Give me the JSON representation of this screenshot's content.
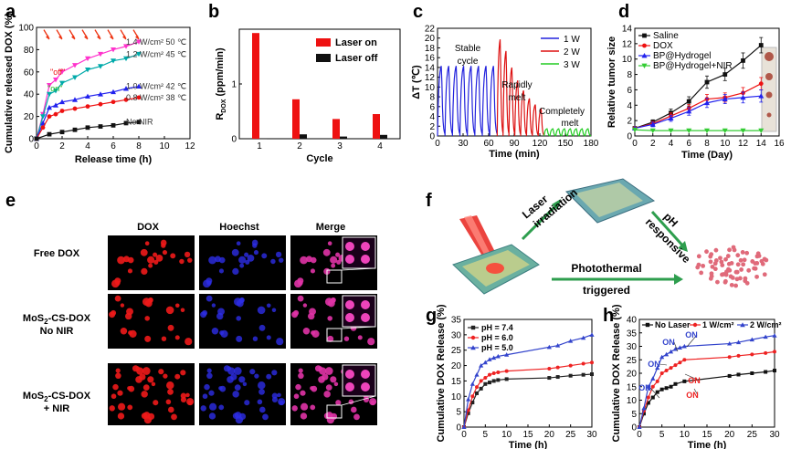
{
  "panel_labels": [
    "a",
    "b",
    "c",
    "d",
    "e",
    "f",
    "g",
    "h"
  ],
  "chart_data": [
    {
      "id": "a",
      "type": "line",
      "xlabel": "Release time (h)",
      "ylabel": "Cumulative released DOX (%)",
      "xlim": [
        0,
        12
      ],
      "ylim": [
        0,
        100
      ],
      "xticks": [
        "0",
        "2",
        "4",
        "6",
        "8",
        "10",
        "12"
      ],
      "yticks": [
        "0",
        "20",
        "40",
        "60",
        "80",
        "100"
      ],
      "on_label": "\"on\"",
      "off_label": "\"off\"",
      "series": [
        {
          "name": "1.4 W/cm² 50 ℃",
          "color": "#ff33cc",
          "marker": "triangle-down",
          "x": [
            0,
            0.5,
            1,
            1.5,
            2,
            3,
            4,
            5,
            6,
            7,
            8
          ],
          "y": [
            0,
            22,
            48,
            53,
            60,
            66,
            72,
            76,
            80,
            83,
            87
          ]
        },
        {
          "name": "1.2 W/cm² 45 ℃",
          "color": "#00aaaa",
          "marker": "triangle-down",
          "x": [
            0,
            0.5,
            1,
            1.5,
            2,
            3,
            4,
            5,
            6,
            7,
            8
          ],
          "y": [
            0,
            20,
            40,
            43,
            50,
            55,
            62,
            65,
            70,
            72,
            76
          ]
        },
        {
          "name": "1.0 W/cm² 42 ℃",
          "color": "#2222ee",
          "marker": "triangle-up",
          "x": [
            0,
            0.5,
            1,
            1.5,
            2,
            3,
            4,
            5,
            6,
            7,
            8
          ],
          "y": [
            0,
            14,
            28,
            30,
            33,
            35,
            38,
            40,
            42,
            45,
            47
          ]
        },
        {
          "name": "0.8 W/cm² 38 ℃",
          "color": "#ee1111",
          "marker": "circle",
          "x": [
            0,
            0.5,
            1,
            1.5,
            2,
            3,
            4,
            5,
            6,
            7,
            8
          ],
          "y": [
            0,
            10,
            20,
            22,
            25,
            27,
            29,
            31,
            33,
            35,
            37
          ]
        },
        {
          "name": "No NIR",
          "color": "#111111",
          "marker": "square",
          "x": [
            0,
            1,
            2,
            3,
            4,
            5,
            6,
            7,
            8
          ],
          "y": [
            0,
            4,
            6,
            8,
            10,
            11,
            12,
            14,
            15
          ]
        }
      ]
    },
    {
      "id": "b",
      "type": "bar",
      "xlabel": "Cycle",
      "ylabel": "R",
      "ylabel_sub": "DOX",
      "ylabel_unit": " (ppm/min)",
      "ylim": [
        0,
        2.0
      ],
      "yticks": [
        "0",
        "1"
      ],
      "categories": [
        "1",
        "2",
        "3",
        "4"
      ],
      "series": [
        {
          "name": "Laser on",
          "color": "#ee1111",
          "values": [
            1.93,
            0.72,
            0.36,
            0.45
          ]
        },
        {
          "name": "Laser off",
          "color": "#111111",
          "values": [
            0.0,
            0.08,
            0.04,
            0.07
          ]
        }
      ]
    },
    {
      "id": "c",
      "type": "line",
      "xlabel": "Time (min)",
      "ylabel": "ΔT (℃)",
      "xlim": [
        0,
        180
      ],
      "ylim": [
        0,
        22
      ],
      "xticks": [
        "0",
        "30",
        "60",
        "90",
        "120",
        "150",
        "180"
      ],
      "yticks": [
        "0",
        "2",
        "4",
        "6",
        "8",
        "10",
        "12",
        "14",
        "16",
        "18",
        "20",
        "22"
      ],
      "annotations": [
        "Stable",
        "cycle",
        "Rapidly",
        "melt",
        "Completely",
        "melt"
      ],
      "series": [
        {
          "name": "1 W",
          "color": "#2222dd",
          "peak": 14.5,
          "cycles": 8,
          "x_range": [
            0,
            70
          ]
        },
        {
          "name": "2 W",
          "color": "#dd1111",
          "peak": 20,
          "cycles": 8,
          "x_range": [
            70,
            125
          ]
        },
        {
          "name": "3 W",
          "color": "#22cc22",
          "peak": 1.5,
          "cycles": 8,
          "x_range": [
            125,
            180
          ]
        }
      ]
    },
    {
      "id": "d",
      "type": "line",
      "xlabel": "Time (Day)",
      "ylabel": "Relative tumor size",
      "xlim": [
        0,
        16
      ],
      "ylim": [
        0,
        14
      ],
      "xticks": [
        "0",
        "2",
        "4",
        "6",
        "8",
        "10",
        "12",
        "14",
        "16"
      ],
      "yticks": [
        "0",
        "2",
        "4",
        "6",
        "8",
        "10",
        "12",
        "14"
      ],
      "series": [
        {
          "name": "Saline",
          "color": "#111111",
          "marker": "square",
          "x": [
            0,
            2,
            4,
            6,
            8,
            10,
            12,
            14
          ],
          "y": [
            1,
            1.8,
            3.0,
            4.5,
            7.0,
            8.0,
            9.8,
            11.8
          ],
          "err": [
            0,
            0.3,
            0.5,
            0.6,
            0.8,
            0.8,
            1.0,
            1.0
          ]
        },
        {
          "name": "DOX",
          "color": "#ee1111",
          "marker": "circle",
          "x": [
            0,
            2,
            4,
            6,
            8,
            10,
            12,
            14
          ],
          "y": [
            1,
            1.6,
            2.6,
            3.6,
            4.8,
            5.0,
            5.6,
            6.8
          ],
          "err": [
            0,
            0.3,
            0.4,
            0.5,
            0.6,
            0.6,
            0.7,
            0.8
          ]
        },
        {
          "name": "BP@Hydrogel",
          "color": "#2222ee",
          "marker": "triangle-up",
          "x": [
            0,
            2,
            4,
            6,
            8,
            10,
            12,
            14
          ],
          "y": [
            1,
            1.5,
            2.3,
            3.2,
            4.3,
            4.8,
            5.0,
            5.2
          ],
          "err": [
            0,
            0.3,
            0.4,
            0.5,
            0.6,
            0.6,
            0.7,
            0.8
          ]
        },
        {
          "name": "BP@Hydrogel+NIR",
          "color": "#33cc33",
          "marker": "triangle-down",
          "x": [
            0,
            2,
            4,
            6,
            8,
            10,
            12,
            14
          ],
          "y": [
            0.8,
            0.7,
            0.7,
            0.7,
            0.7,
            0.7,
            0.7,
            0.7
          ],
          "err": [
            0,
            0,
            0,
            0,
            0,
            0,
            0,
            0
          ]
        }
      ]
    },
    {
      "id": "g",
      "type": "line",
      "xlabel": "Time (h)",
      "ylabel": "Cumulative DOX Release (%)",
      "xlim": [
        0,
        30
      ],
      "ylim": [
        0,
        35
      ],
      "xticks": [
        "0",
        "5",
        "10",
        "15",
        "20",
        "25",
        "30"
      ],
      "yticks": [
        "0",
        "5",
        "10",
        "15",
        "20",
        "25",
        "30",
        "35"
      ],
      "series": [
        {
          "name": "pH = 7.4",
          "color": "#222222",
          "marker": "square",
          "x": [
            0,
            1,
            2,
            3,
            4,
            5,
            6,
            7,
            8,
            10,
            20,
            22,
            25,
            28,
            30
          ],
          "y": [
            0,
            4.5,
            8,
            11,
            12.5,
            14,
            14.5,
            15,
            15.3,
            15.6,
            16,
            16.3,
            16.7,
            17,
            17.2
          ]
        },
        {
          "name": "pH = 6.0",
          "color": "#ee2222",
          "marker": "circle",
          "x": [
            0,
            1,
            2,
            3,
            4,
            5,
            6,
            7,
            8,
            10,
            20,
            22,
            25,
            28,
            30
          ],
          "y": [
            0,
            5.5,
            10,
            13,
            15,
            16,
            17,
            17.5,
            17.8,
            18.2,
            19,
            19.4,
            20,
            20.6,
            21
          ]
        },
        {
          "name": "pH = 5.0",
          "color": "#3344cc",
          "marker": "triangle-up",
          "x": [
            0,
            1,
            2,
            3,
            4,
            5,
            6,
            7,
            8,
            10,
            20,
            22,
            25,
            28,
            30
          ],
          "y": [
            0,
            9,
            14,
            17,
            20,
            21,
            22,
            22.5,
            23,
            23.5,
            26,
            26.5,
            28,
            29,
            30
          ]
        }
      ]
    },
    {
      "id": "h",
      "type": "line",
      "xlabel": "Time (h)",
      "ylabel": "Cumulative DOX Release (%)",
      "xlim": [
        0,
        30
      ],
      "ylim": [
        0,
        40
      ],
      "xticks": [
        "0",
        "5",
        "10",
        "15",
        "20",
        "25",
        "30"
      ],
      "yticks": [
        "0",
        "5",
        "10",
        "15",
        "20",
        "25",
        "30",
        "35",
        "40"
      ],
      "on_labels": [
        "ON",
        "ON",
        "ON",
        "ON",
        "ON",
        "ON"
      ],
      "series": [
        {
          "name": "No Laser",
          "color": "#111111",
          "marker": "square",
          "x": [
            0,
            1,
            2,
            3,
            4,
            5,
            6,
            7,
            8,
            10,
            20,
            22,
            25,
            28,
            30
          ],
          "y": [
            0,
            5,
            9,
            11,
            13,
            14,
            14.5,
            15,
            16,
            17,
            19,
            19.5,
            20,
            20.5,
            21
          ]
        },
        {
          "name": "1 W/cm²",
          "color": "#ee2222",
          "marker": "circle",
          "x": [
            0,
            1,
            2,
            3,
            4,
            5,
            6,
            7,
            8,
            9,
            10,
            20,
            22,
            25,
            28,
            30
          ],
          "y": [
            0,
            6,
            11,
            15,
            17,
            20,
            21,
            22,
            23,
            24,
            25,
            26,
            26.5,
            27,
            27.5,
            28
          ]
        },
        {
          "name": "2 W/cm²",
          "color": "#3344cc",
          "marker": "triangle-up",
          "x": [
            0,
            1,
            2,
            3,
            4,
            5,
            6,
            7,
            8,
            9,
            10,
            20,
            22,
            25,
            28,
            30
          ],
          "y": [
            0,
            7,
            15,
            18,
            22,
            26,
            27,
            28,
            29,
            29.5,
            30,
            31,
            31.5,
            32.5,
            33.5,
            34
          ]
        }
      ]
    }
  ],
  "panel_e": {
    "columns": [
      "DOX",
      "Hoechst",
      "Merge"
    ],
    "rows": [
      {
        "label_main": "Free DOX",
        "label_extra": ""
      },
      {
        "label_main": "MoS",
        "label_sub": "2",
        "label_rest": "-CS-DOX",
        "label_extra": "No NIR"
      },
      {
        "label_main": "MoS",
        "label_sub": "2",
        "label_rest": "-CS-DOX",
        "label_extra": "+ NIR"
      }
    ]
  },
  "panel_f": {
    "laser_label_1": "Laser",
    "laser_label_2": "irradiation",
    "ph_label_1": "pH",
    "ph_label_2": "responsive",
    "photo_label_1": "Photothermal",
    "photo_label_2": "triggered"
  },
  "colors": {
    "red": "#ee1111",
    "blue": "#2222ee",
    "green": "#22cc22",
    "black": "#111111",
    "pink": "#ff33cc",
    "teal": "#00aaaa"
  }
}
